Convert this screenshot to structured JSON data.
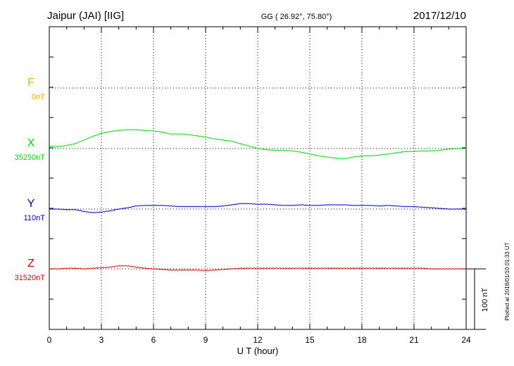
{
  "header": {
    "station": "Jaipur (JAI)  [IIG]",
    "coords": "GG ( 26.92°,  75.80°)",
    "date": "2017/12/10"
  },
  "footnote": "Plotted at 2018/01/10 01:33 UT",
  "chart_data": {
    "type": "line",
    "xlabel": "U T (hour)",
    "xlim": [
      0,
      24
    ],
    "x_ticks": [
      0,
      3,
      6,
      9,
      12,
      15,
      18,
      21,
      24
    ],
    "x_tick_labels": [
      "0",
      "3",
      "6",
      "9",
      "12",
      "15",
      "18",
      "21",
      "24"
    ],
    "scale_bar": {
      "label": "100 nT",
      "value_nT": 100
    },
    "grid": true,
    "series": [
      {
        "name": "F",
        "baseline_label": "0nT",
        "color": "#ffa500",
        "x": [],
        "y": []
      },
      {
        "name": "X",
        "baseline_label": "35250nT",
        "color": "#00dd00",
        "x": [
          0,
          0.5,
          1,
          1.5,
          2,
          2.5,
          3,
          3.5,
          4,
          4.5,
          5,
          5.5,
          6,
          6.5,
          7,
          7.5,
          8,
          8.5,
          9,
          9.5,
          10,
          10.5,
          11,
          11.5,
          12,
          12.5,
          13,
          13.5,
          14,
          14.5,
          15,
          15.5,
          16,
          16.5,
          17,
          17.5,
          18,
          18.5,
          19,
          19.5,
          20,
          20.5,
          21,
          21.5,
          22,
          22.5,
          23,
          23.5,
          24
        ],
        "y": [
          4,
          3,
          5,
          8,
          14,
          20,
          25,
          28,
          30,
          31,
          31,
          30,
          29,
          27,
          24,
          24,
          23,
          21,
          19,
          16,
          14,
          12,
          8,
          4,
          0,
          -2,
          -3,
          -3,
          -4,
          -6,
          -9,
          -12,
          -14,
          -16,
          -17,
          -14,
          -12,
          -12,
          -11,
          -9,
          -7,
          -5,
          -5,
          -4,
          -4,
          -3,
          -1,
          0,
          0
        ]
      },
      {
        "name": "Y",
        "baseline_label": "110nT",
        "color": "#0000cc",
        "x": [
          0,
          0.5,
          1,
          1.5,
          2,
          2.5,
          3,
          3.5,
          4,
          4.5,
          5,
          5.5,
          6,
          6.5,
          7,
          7.5,
          8,
          8.5,
          9,
          9.5,
          10,
          10.5,
          11,
          11.5,
          12,
          12.5,
          13,
          13.5,
          14,
          14.5,
          15,
          15.5,
          16,
          16.5,
          17,
          17.5,
          18,
          18.5,
          19,
          19.5,
          20,
          20.5,
          21,
          21.5,
          22,
          22.5,
          23,
          23.5,
          24
        ],
        "y": [
          0,
          0,
          -1,
          -1,
          -4,
          -6,
          -5,
          -3,
          0,
          2,
          5,
          6,
          6,
          6,
          5,
          4,
          4,
          4,
          4,
          4,
          5,
          7,
          9,
          9,
          8,
          8,
          7,
          6,
          6,
          7,
          6,
          6,
          7,
          7,
          7,
          6,
          6,
          6,
          5,
          6,
          5,
          4,
          4,
          3,
          2,
          1,
          0,
          0,
          0
        ]
      },
      {
        "name": "Z",
        "baseline_label": "31520nT",
        "color": "#dd0000",
        "x": [
          0,
          0.5,
          1,
          1.5,
          2,
          2.5,
          3,
          3.5,
          4,
          4.5,
          5,
          5.5,
          6,
          6.5,
          7,
          7.5,
          8,
          8.5,
          9,
          9.5,
          10,
          10.5,
          11,
          11.5,
          12,
          12.5,
          13,
          13.5,
          14,
          14.5,
          15,
          15.5,
          16,
          16.5,
          17,
          17.5,
          18,
          18.5,
          19,
          19.5,
          20,
          20.5,
          21,
          21.5,
          22,
          22.5,
          23,
          23.5,
          24
        ],
        "y": [
          0,
          0,
          1,
          1,
          0,
          1,
          2,
          3,
          5,
          5,
          3,
          1,
          0,
          -1,
          -2,
          -2,
          -2,
          -2,
          -3,
          -2,
          -1,
          0,
          1,
          1,
          1,
          1,
          1,
          1,
          1,
          1,
          1,
          1,
          1,
          1,
          1,
          1,
          1,
          1,
          1,
          1,
          1,
          1,
          1,
          1,
          0,
          0,
          0,
          0,
          0
        ]
      }
    ]
  }
}
